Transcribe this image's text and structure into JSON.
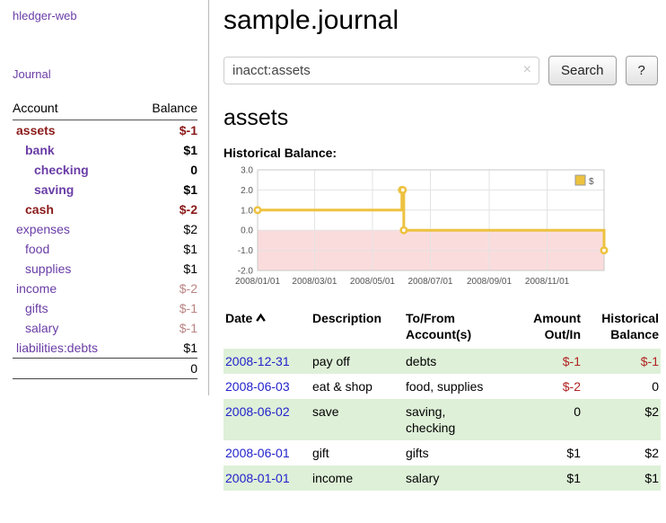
{
  "app": {
    "brand": "hledger-web",
    "nav": {
      "journal": "Journal"
    }
  },
  "colors": {
    "link_purple": "#6a3da6",
    "negative_strong": "#8b1a1a",
    "negative_muted": "#bb8484",
    "negative": "#b22222",
    "date_blue": "#2222cc",
    "row_green": "#def0d8"
  },
  "sidebar": {
    "headers": {
      "account": "Account",
      "balance": "Balance"
    },
    "accounts": [
      {
        "name": "assets",
        "balance": "$-1",
        "indent": 0,
        "bold": true
      },
      {
        "name": "bank",
        "balance": "$1",
        "indent": 1,
        "bold": true
      },
      {
        "name": "checking",
        "balance": "0",
        "indent": 2,
        "bold": true
      },
      {
        "name": "saving",
        "balance": "$1",
        "indent": 2,
        "bold": true
      },
      {
        "name": "cash",
        "balance": "$-2",
        "indent": 1,
        "bold": true
      },
      {
        "name": "expenses",
        "balance": "$2",
        "indent": 0,
        "bold": false
      },
      {
        "name": "food",
        "balance": "$1",
        "indent": 1,
        "bold": false
      },
      {
        "name": "supplies",
        "balance": "$1",
        "indent": 1,
        "bold": false
      },
      {
        "name": "income",
        "balance": "$-2",
        "indent": 0,
        "bold": false
      },
      {
        "name": "gifts",
        "balance": "$-1",
        "indent": 1,
        "bold": false
      },
      {
        "name": "salary",
        "balance": "$-1",
        "indent": 1,
        "bold": false
      },
      {
        "name": "liabilities:debts",
        "balance": "$1",
        "indent": 0,
        "bold": false
      }
    ],
    "total": "0"
  },
  "main": {
    "title": "sample.journal",
    "search": {
      "value": "inacct:assets",
      "clear_icon": "×",
      "button": "Search",
      "help_button": "?"
    },
    "account_heading": "assets",
    "chart_title": "Historical Balance:"
  },
  "chart_data": {
    "type": "line",
    "title": "Historical Balance",
    "steps": true,
    "grid": true,
    "x_range": [
      "2008-01-01",
      "2008-12-31"
    ],
    "ylim": [
      -2,
      3
    ],
    "y_ticks": [
      3,
      2,
      1,
      0,
      -1,
      -2
    ],
    "x_ticks": [
      "2008/01/01",
      "2008/03/01",
      "2008/05/01",
      "2008/07/01",
      "2008/09/01",
      "2008/11/01"
    ],
    "legend": {
      "label": "$",
      "position": "top-right"
    },
    "negative_region_color": "#fbdcdc",
    "series": [
      {
        "name": "$",
        "color": "#edc240",
        "points": [
          [
            "2008-01-01",
            1
          ],
          [
            "2008-06-01",
            2
          ],
          [
            "2008-06-02",
            2
          ],
          [
            "2008-06-03",
            0
          ],
          [
            "2008-12-31",
            -1
          ]
        ]
      }
    ]
  },
  "register": {
    "sort_icon": "chevron-up",
    "headers": {
      "date": "Date",
      "description": "Description",
      "account_l1": "To/From",
      "account_l2": "Account(s)",
      "amount_l1": "Amount",
      "amount_l2": "Out/In",
      "balance_l1": "Historical",
      "balance_l2": "Balance"
    },
    "rows": [
      {
        "date": "2008-12-31",
        "description": "pay off",
        "accounts": [
          "debts"
        ],
        "amount": "$-1",
        "balance": "$-1"
      },
      {
        "date": "2008-06-03",
        "description": "eat & shop",
        "accounts": [
          "food, supplies"
        ],
        "amount": "$-2",
        "balance": "0"
      },
      {
        "date": "2008-06-02",
        "description": "save",
        "accounts": [
          "saving,",
          "checking"
        ],
        "amount": "0",
        "balance": "$2"
      },
      {
        "date": "2008-06-01",
        "description": "gift",
        "accounts": [
          "gifts"
        ],
        "amount": "$1",
        "balance": "$2"
      },
      {
        "date": "2008-01-01",
        "description": "income",
        "accounts": [
          "salary"
        ],
        "amount": "$1",
        "balance": "$1"
      }
    ]
  }
}
